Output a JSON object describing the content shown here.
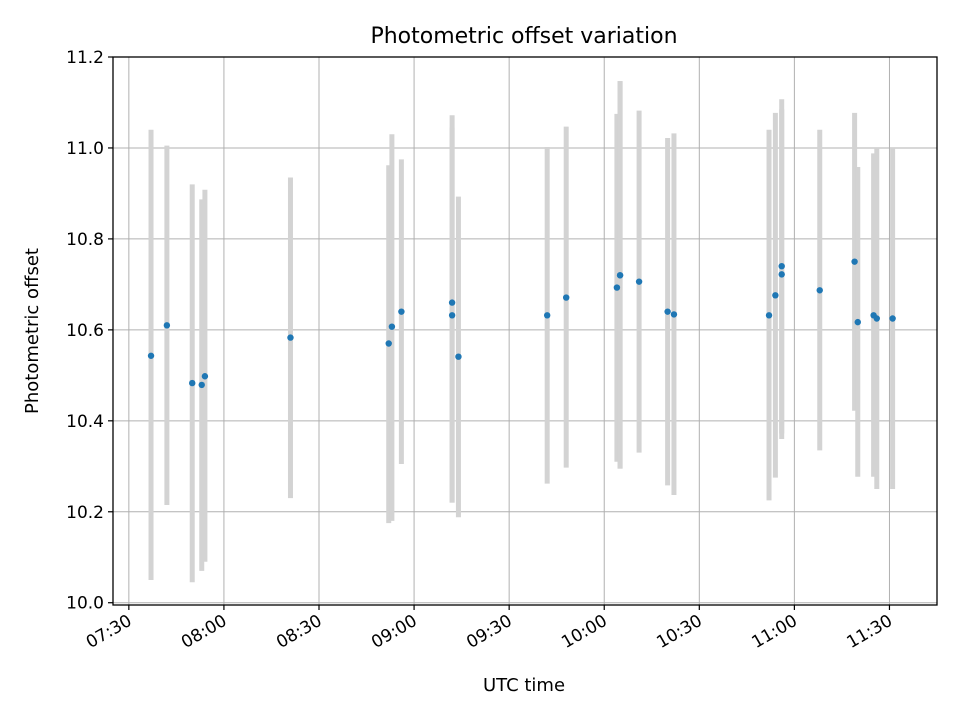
{
  "chart_data": {
    "type": "scatter",
    "title": "Photometric offset variation",
    "xlabel": "UTC time",
    "ylabel": "Photometric offset",
    "xlim": [
      "07:25",
      "11:45"
    ],
    "ylim": [
      9.995,
      11.2
    ],
    "x_ticks": [
      "07:30",
      "08:00",
      "08:30",
      "09:00",
      "09:30",
      "10:00",
      "10:30",
      "11:00",
      "11:30"
    ],
    "y_ticks": [
      "10.0",
      "10.2",
      "10.4",
      "10.6",
      "10.8",
      "11.0",
      "11.2"
    ],
    "grid": true,
    "colors": {
      "point": "#1f77b4",
      "errorbar": "#d3d3d3",
      "grid": "#b0b0b0"
    },
    "points": [
      {
        "x": "07:37",
        "y": 10.543,
        "ylo": 10.05,
        "yhi": 11.04
      },
      {
        "x": "07:42",
        "y": 10.61,
        "ylo": 10.215,
        "yhi": 11.005
      },
      {
        "x": "07:50",
        "y": 10.483,
        "ylo": 10.045,
        "yhi": 10.92
      },
      {
        "x": "07:53",
        "y": 10.479,
        "ylo": 10.07,
        "yhi": 10.887
      },
      {
        "x": "07:54",
        "y": 10.498,
        "ylo": 10.09,
        "yhi": 10.908
      },
      {
        "x": "08:21",
        "y": 10.583,
        "ylo": 10.23,
        "yhi": 10.935
      },
      {
        "x": "08:52",
        "y": 10.57,
        "ylo": 10.175,
        "yhi": 10.962
      },
      {
        "x": "08:53",
        "y": 10.607,
        "ylo": 10.18,
        "yhi": 11.03
      },
      {
        "x": "08:56",
        "y": 10.64,
        "ylo": 10.305,
        "yhi": 10.975
      },
      {
        "x": "09:12",
        "y": 10.66,
        "ylo": 10.22,
        "yhi": 11.072
      },
      {
        "x": "09:12",
        "y": 10.632,
        "ylo": 10.22,
        "yhi": 11.045
      },
      {
        "x": "09:14",
        "y": 10.541,
        "ylo": 10.188,
        "yhi": 10.893
      },
      {
        "x": "09:42",
        "y": 10.632,
        "ylo": 10.262,
        "yhi": 11.002
      },
      {
        "x": "09:48",
        "y": 10.671,
        "ylo": 10.297,
        "yhi": 11.047
      },
      {
        "x": "10:04",
        "y": 10.693,
        "ylo": 10.31,
        "yhi": 11.075
      },
      {
        "x": "10:05",
        "y": 10.72,
        "ylo": 10.295,
        "yhi": 11.147
      },
      {
        "x": "10:05",
        "y": 10.72,
        "ylo": 10.295,
        "yhi": 11.147
      },
      {
        "x": "10:11",
        "y": 10.706,
        "ylo": 10.33,
        "yhi": 11.082
      },
      {
        "x": "10:20",
        "y": 10.64,
        "ylo": 10.258,
        "yhi": 11.022
      },
      {
        "x": "10:22",
        "y": 10.634,
        "ylo": 10.237,
        "yhi": 11.032
      },
      {
        "x": "10:52",
        "y": 10.632,
        "ylo": 10.225,
        "yhi": 11.04
      },
      {
        "x": "10:54",
        "y": 10.676,
        "ylo": 10.275,
        "yhi": 11.077
      },
      {
        "x": "10:56",
        "y": 10.74,
        "ylo": 10.372,
        "yhi": 11.107
      },
      {
        "x": "10:56",
        "y": 10.722,
        "ylo": 10.36,
        "yhi": 11.085
      },
      {
        "x": "11:08",
        "y": 10.687,
        "ylo": 10.335,
        "yhi": 11.04
      },
      {
        "x": "11:19",
        "y": 10.75,
        "ylo": 10.422,
        "yhi": 11.077
      },
      {
        "x": "11:20",
        "y": 10.617,
        "ylo": 10.277,
        "yhi": 10.958
      },
      {
        "x": "11:25",
        "y": 10.632,
        "ylo": 10.277,
        "yhi": 10.988
      },
      {
        "x": "11:26",
        "y": 10.625,
        "ylo": 10.25,
        "yhi": 11.0
      },
      {
        "x": "11:31",
        "y": 10.625,
        "ylo": 10.25,
        "yhi": 11.0
      }
    ]
  }
}
